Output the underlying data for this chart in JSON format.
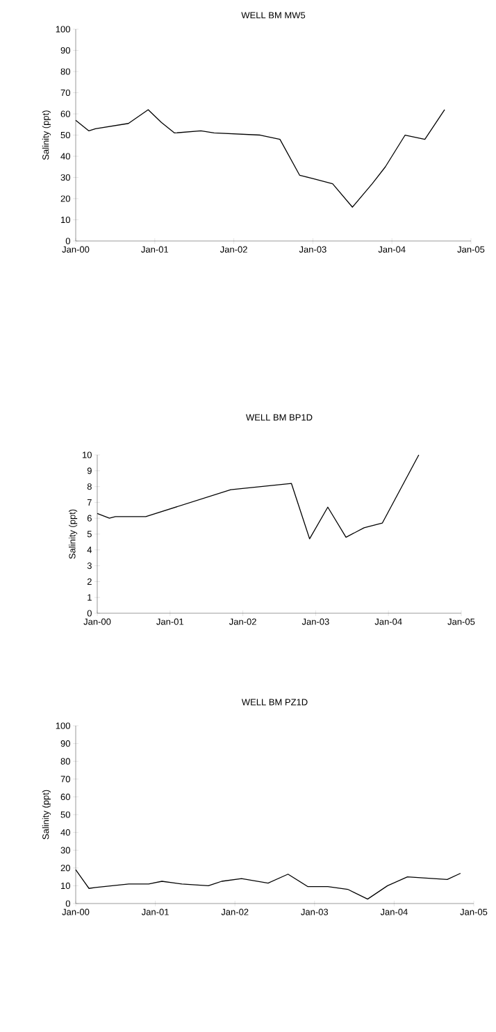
{
  "chart_data": [
    {
      "type": "line",
      "title": "WELL BM MW5",
      "ylabel": "Salinity (ppt)",
      "x": [
        "2000-01",
        "2000-03",
        "2000-04",
        "2000-09",
        "2000-12",
        "2001-02",
        "2001-04",
        "2001-08",
        "2001-10",
        "2002-05",
        "2002-08",
        "2002-11",
        "2003-01",
        "2003-04",
        "2003-07",
        "2003-10",
        "2003-12",
        "2004-03",
        "2004-06",
        "2004-09"
      ],
      "values": [
        57,
        52,
        53,
        55.5,
        62,
        56,
        51,
        52,
        51,
        50,
        48,
        31,
        29.5,
        27,
        16,
        27,
        35,
        50,
        48,
        62
      ],
      "color": "#000000",
      "xlim": [
        "2000-01",
        "2005-01"
      ],
      "xticks": [
        {
          "value": "2000-01",
          "label": "Jan-00"
        },
        {
          "value": "2001-01",
          "label": "Jan-01"
        },
        {
          "value": "2002-01",
          "label": "Jan-02"
        },
        {
          "value": "2003-01",
          "label": "Jan-03"
        },
        {
          "value": "2004-01",
          "label": "Jan-04"
        },
        {
          "value": "2005-01",
          "label": "Jan-05"
        }
      ],
      "ylim": [
        0,
        100
      ],
      "yticks": [
        0,
        10,
        20,
        30,
        40,
        50,
        60,
        70,
        80,
        90,
        100
      ]
    },
    {
      "type": "line",
      "title": "WELL BM BP1D",
      "ylabel": "Salinity (ppt)",
      "x": [
        "2000-01",
        "2000-03",
        "2000-04",
        "2000-09",
        "2001-11",
        "2002-09",
        "2002-12",
        "2003-03",
        "2003-06",
        "2003-09",
        "2003-12",
        "2004-06"
      ],
      "values": [
        6.3,
        6.0,
        6.1,
        6.1,
        7.8,
        8.2,
        4.7,
        6.7,
        4.8,
        5.4,
        5.7,
        10
      ],
      "color": "#000000",
      "xlim": [
        "2000-01",
        "2005-01"
      ],
      "xticks": [
        {
          "value": "2000-01",
          "label": "Jan-00"
        },
        {
          "value": "2001-01",
          "label": "Jan-01"
        },
        {
          "value": "2002-01",
          "label": "Jan-02"
        },
        {
          "value": "2003-01",
          "label": "Jan-03"
        },
        {
          "value": "2004-01",
          "label": "Jan-04"
        },
        {
          "value": "2005-01",
          "label": "Jan-05"
        }
      ],
      "ylim": [
        0,
        10
      ],
      "yticks": [
        0,
        1,
        2,
        3,
        4,
        5,
        6,
        7,
        8,
        9,
        10
      ]
    },
    {
      "type": "line",
      "title": "WELL BM PZ1D",
      "ylabel": "Salinity (ppt)",
      "x": [
        "2000-01",
        "2000-03",
        "2000-04",
        "2000-09",
        "2000-12",
        "2001-02",
        "2001-05",
        "2001-09",
        "2001-11",
        "2002-02",
        "2002-06",
        "2002-09",
        "2002-12",
        "2003-03",
        "2003-06",
        "2003-09",
        "2003-12",
        "2004-03",
        "2004-09",
        "2004-11"
      ],
      "values": [
        19,
        8.5,
        9,
        11,
        11,
        12.5,
        11,
        10,
        12.5,
        14,
        11.5,
        16.5,
        9.5,
        9.5,
        8,
        2.5,
        10,
        15,
        13.5,
        17
      ],
      "color": "#000000",
      "xlim": [
        "2000-01",
        "2005-01"
      ],
      "xticks": [
        {
          "value": "2000-01",
          "label": "Jan-00"
        },
        {
          "value": "2001-01",
          "label": "Jan-01"
        },
        {
          "value": "2002-01",
          "label": "Jan-02"
        },
        {
          "value": "2003-01",
          "label": "Jan-03"
        },
        {
          "value": "2004-01",
          "label": "Jan-04"
        },
        {
          "value": "2005-01",
          "label": "Jan-05"
        }
      ],
      "ylim": [
        0,
        100
      ],
      "yticks": [
        0,
        10,
        20,
        30,
        40,
        50,
        60,
        70,
        80,
        90,
        100
      ]
    }
  ]
}
